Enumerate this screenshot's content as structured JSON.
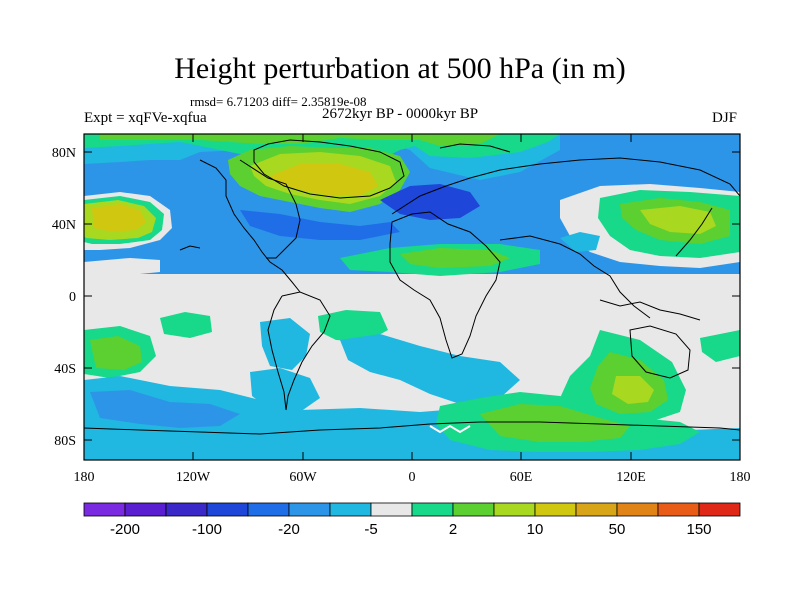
{
  "title": "Height perturbation at 500 hPa (in m)",
  "stats": "rmsd= 6.71203 diff= 2.35819e-08",
  "left_label": "Expt = xqFVe-xqfua",
  "center_label": "2672kyr BP - 0000kyr BP",
  "right_label": "DJF",
  "axes": {
    "lat_ticks": [
      "80N",
      "40N",
      "0",
      "40S",
      "80S"
    ],
    "lon_ticks": [
      "180",
      "120W",
      "60W",
      "0",
      "60E",
      "120E",
      "180"
    ]
  },
  "colorbar": {
    "colors": [
      "#7a2ae0",
      "#5a1fd0",
      "#3a28c8",
      "#1e46d8",
      "#1f6ee8",
      "#2d95e8",
      "#20b8e0",
      "#e8e8e8",
      "#18d88a",
      "#5cd030",
      "#a8d820",
      "#d0c810",
      "#d8a418",
      "#e08418",
      "#e85c18",
      "#e02818"
    ],
    "labels": [
      "-200",
      "-100",
      "-20",
      "-5",
      "2",
      "10",
      "50",
      "150"
    ]
  }
}
